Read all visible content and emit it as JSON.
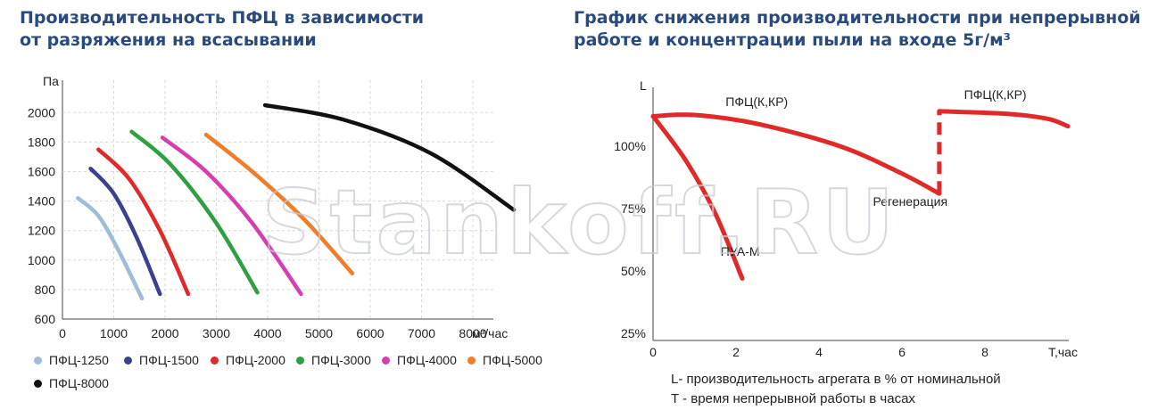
{
  "titles": {
    "left_line1": "Производительность ПФЦ в зависимости",
    "left_line2": "от разряжения на всасывании",
    "right_line1": "График снижения производительности при непрерывной",
    "right_line2": "работе и концентрации пыли на входе 5г/м³"
  },
  "notes": {
    "line1": "L- производительность агрегата в % от номинальной",
    "line2": "T - время непрерывной работы в часах"
  },
  "watermark": "Stankoff.RU",
  "chart_data": [
    {
      "type": "line",
      "title": "Производительность ПФЦ в зависимости от разряжения на всасывании",
      "xlabel": "м³/час",
      "ylabel": "Па",
      "xlim": [
        0,
        9000
      ],
      "ylim": [
        600,
        2200
      ],
      "xticks": [
        "0",
        "1000",
        "2000",
        "3000",
        "4000",
        "5000",
        "6000",
        "7000",
        "8000"
      ],
      "yticks": [
        "600",
        "800",
        "1000",
        "1200",
        "1400",
        "1600",
        "1800",
        "2000"
      ],
      "grid": true,
      "legend_position": "bottom",
      "series": [
        {
          "name": "ПФЦ-1250",
          "color": "#9fbcd8",
          "points": [
            [
              300,
              1420
            ],
            [
              700,
              1300
            ],
            [
              1100,
              1060
            ],
            [
              1550,
              740
            ]
          ]
        },
        {
          "name": "ПФЦ-1500",
          "color": "#3d3f8f",
          "points": [
            [
              550,
              1620
            ],
            [
              1000,
              1450
            ],
            [
              1450,
              1150
            ],
            [
              1900,
              770
            ]
          ]
        },
        {
          "name": "ПФЦ-2000",
          "color": "#e02a2a",
          "points": [
            [
              700,
              1750
            ],
            [
              1300,
              1550
            ],
            [
              1900,
              1200
            ],
            [
              2450,
              770
            ]
          ]
        },
        {
          "name": "ПФЦ-3000",
          "color": "#2ea043",
          "points": [
            [
              1350,
              1870
            ],
            [
              2100,
              1650
            ],
            [
              3000,
              1250
            ],
            [
              3800,
              780
            ]
          ]
        },
        {
          "name": "ПФЦ-4000",
          "color": "#d43fb0",
          "points": [
            [
              1950,
              1830
            ],
            [
              2800,
              1600
            ],
            [
              3700,
              1250
            ],
            [
              4650,
              770
            ]
          ]
        },
        {
          "name": "ПФЦ-5000",
          "color": "#f07d2a",
          "points": [
            [
              2800,
              1850
            ],
            [
              3700,
              1600
            ],
            [
              4700,
              1280
            ],
            [
              5650,
              910
            ]
          ]
        },
        {
          "name": "ПФЦ-8000",
          "color": "#111111",
          "points": [
            [
              3950,
              2050
            ],
            [
              5500,
              1950
            ],
            [
              7200,
              1720
            ],
            [
              8800,
              1340
            ]
          ]
        }
      ]
    },
    {
      "type": "line",
      "title": "График снижения производительности при непрерывной работе и концентрации пыли на входе 5г/м³",
      "xlabel": "Т,час",
      "ylabel": "L",
      "xlim": [
        0,
        10
      ],
      "ylim": [
        25,
        125
      ],
      "xticks": [
        "0",
        "2",
        "4",
        "6",
        "8"
      ],
      "yticks": [
        "25%",
        "50%",
        "75%",
        "100%"
      ],
      "grid": false,
      "series": [
        {
          "name": "ПФЦ(К,КР)",
          "color": "#e02a2a",
          "points": [
            [
              0,
              112
            ],
            [
              1,
              112.5
            ],
            [
              2.5,
              109
            ],
            [
              4.5,
              100
            ],
            [
              6.0,
              89
            ],
            [
              6.9,
              81
            ]
          ]
        },
        {
          "name": "ПФЦ(К,КР)",
          "color": "#e02a2a",
          "points": [
            [
              6.9,
              114
            ],
            [
              8.5,
              113
            ],
            [
              9.5,
              111
            ],
            [
              10.0,
              108
            ]
          ]
        },
        {
          "name": "ПУА-М",
          "color": "#e02a2a",
          "points": [
            [
              0,
              112
            ],
            [
              0.8,
              94
            ],
            [
              1.5,
              73
            ],
            [
              2.15,
              47
            ]
          ]
        }
      ],
      "annotations": [
        {
          "text": "ПФЦ(К,КР)",
          "x": 2.5,
          "y": 116
        },
        {
          "text": "ПФЦ(К,КР)",
          "x": 8.25,
          "y": 119
        },
        {
          "text": "Регенерация",
          "x": 6.2,
          "y": 76
        },
        {
          "text": "ПУА-М",
          "x": 2.1,
          "y": 56
        }
      ],
      "regeneration": {
        "x": 6.9,
        "from": 81,
        "to": 114
      }
    }
  ]
}
